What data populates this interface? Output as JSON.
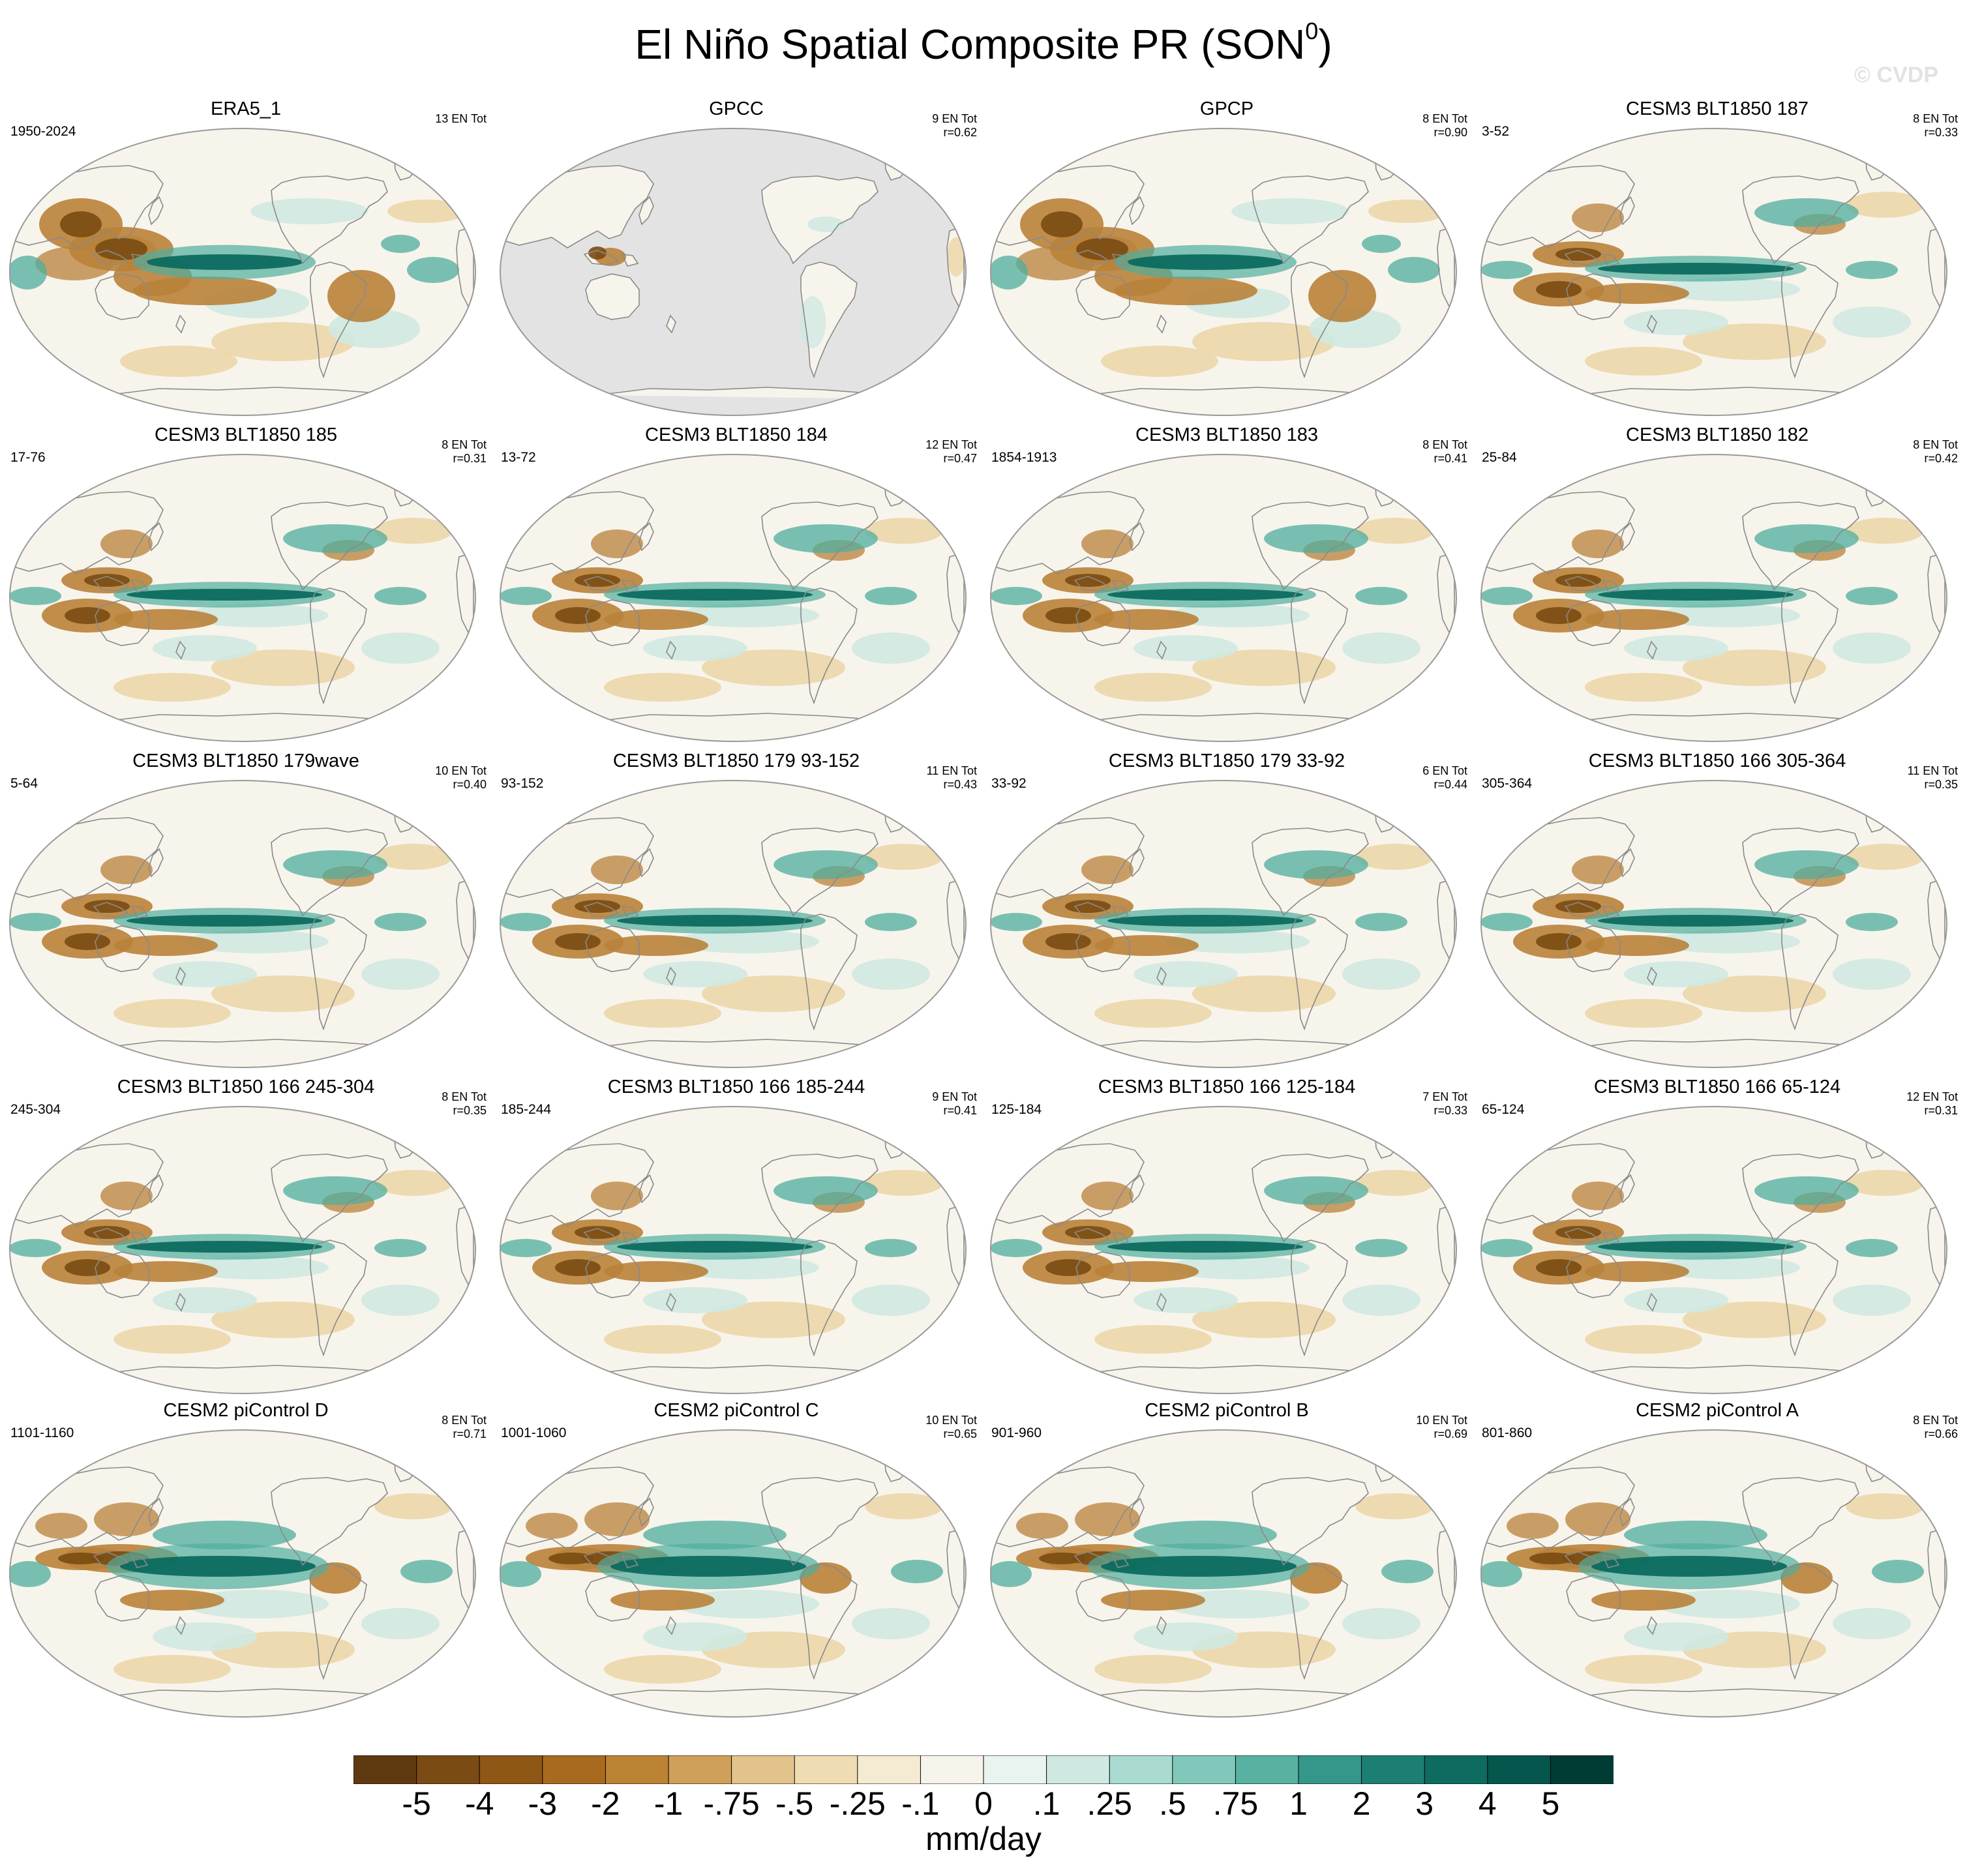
{
  "title": "El Niño Spatial Composite PR (SON",
  "title_superscript": "0",
  "title_close": ")",
  "watermark": "© CVDP",
  "units": "mm/day",
  "colors": {
    "dry_strong": "#7a4b12",
    "dry_medium": "#b9823a",
    "dry_weak": "#ecd5a6",
    "neutral": "#f7f4ec",
    "wet_weak": "#cfe9e2",
    "wet_medium": "#4fae9e",
    "wet_strong": "#0b6b5f",
    "missing": "#e3e3e3",
    "coast": "#8a8a8a"
  },
  "colorbar": {
    "colors": [
      "#5f3a11",
      "#7a4b12",
      "#8f5716",
      "#a86a1f",
      "#bd8335",
      "#cfa05a",
      "#e2c38b",
      "#efdcb2",
      "#f5ebd2",
      "#f7f4ec",
      "#e9f4f1",
      "#cfe9e2",
      "#a9dbd0",
      "#80c9ba",
      "#58b1a1",
      "#35968a",
      "#1d7f74",
      "#0d6b60",
      "#05574d",
      "#003c33"
    ],
    "labels": [
      "-5",
      "-4",
      "-3",
      "-2",
      "-1",
      "-.75",
      "-.5",
      "-.25",
      "-.1",
      "0",
      ".1",
      ".25",
      ".5",
      ".75",
      "1",
      "2",
      "3",
      "4",
      "5"
    ]
  },
  "panels": [
    {
      "title": "ERA5_1",
      "years": "1950-2024",
      "count": "13 EN Tot",
      "r": "",
      "style": "obs"
    },
    {
      "title": "GPCC",
      "years": "",
      "count": "9 EN Tot",
      "r": "r=0.62",
      "style": "land"
    },
    {
      "title": "GPCP",
      "years": "",
      "count": "8 EN Tot",
      "r": "r=0.90",
      "style": "obs"
    },
    {
      "title": "CESM3 BLT1850 187",
      "years": "3-52",
      "count": "8 EN Tot",
      "r": "r=0.33",
      "style": "model"
    },
    {
      "title": "CESM3 BLT1850 185",
      "years": "17-76",
      "count": "8 EN Tot",
      "r": "r=0.31",
      "style": "model"
    },
    {
      "title": "CESM3 BLT1850 184",
      "years": "13-72",
      "count": "12 EN Tot",
      "r": "r=0.47",
      "style": "model"
    },
    {
      "title": "CESM3 BLT1850 183",
      "years": "1854-1913",
      "count": "8 EN Tot",
      "r": "r=0.41",
      "style": "model"
    },
    {
      "title": "CESM3 BLT1850 182",
      "years": "25-84",
      "count": "8 EN Tot",
      "r": "r=0.42",
      "style": "model"
    },
    {
      "title": "CESM3 BLT1850 179wave",
      "years": "5-64",
      "count": "10 EN Tot",
      "r": "r=0.40",
      "style": "model"
    },
    {
      "title": "CESM3 BLT1850 179 93-152",
      "years": "93-152",
      "count": "11 EN Tot",
      "r": "r=0.43",
      "style": "model"
    },
    {
      "title": "CESM3 BLT1850 179 33-92",
      "years": "33-92",
      "count": "6 EN Tot",
      "r": "r=0.44",
      "style": "model"
    },
    {
      "title": "CESM3 BLT1850 166 305-364",
      "years": "305-364",
      "count": "11 EN Tot",
      "r": "r=0.35",
      "style": "model"
    },
    {
      "title": "CESM3 BLT1850 166 245-304",
      "years": "245-304",
      "count": "8 EN Tot",
      "r": "r=0.35",
      "style": "model"
    },
    {
      "title": "CESM3 BLT1850 166 185-244",
      "years": "185-244",
      "count": "9 EN Tot",
      "r": "r=0.41",
      "style": "model"
    },
    {
      "title": "CESM3 BLT1850 166 125-184",
      "years": "125-184",
      "count": "7 EN Tot",
      "r": "r=0.33",
      "style": "model"
    },
    {
      "title": "CESM3 BLT1850 166 65-124",
      "years": "65-124",
      "count": "12 EN Tot",
      "r": "r=0.31",
      "style": "model"
    },
    {
      "title": "CESM2 piControl D",
      "years": "1101-1160",
      "count": "8 EN Tot",
      "r": "r=0.71",
      "style": "strong"
    },
    {
      "title": "CESM2 piControl C",
      "years": "1001-1060",
      "count": "10 EN Tot",
      "r": "r=0.65",
      "style": "strong"
    },
    {
      "title": "CESM2 piControl B",
      "years": "901-960",
      "count": "10 EN Tot",
      "r": "r=0.69",
      "style": "strong"
    },
    {
      "title": "CESM2 piControl A",
      "years": "801-860",
      "count": "8 EN Tot",
      "r": "r=0.66",
      "style": "strong"
    }
  ]
}
